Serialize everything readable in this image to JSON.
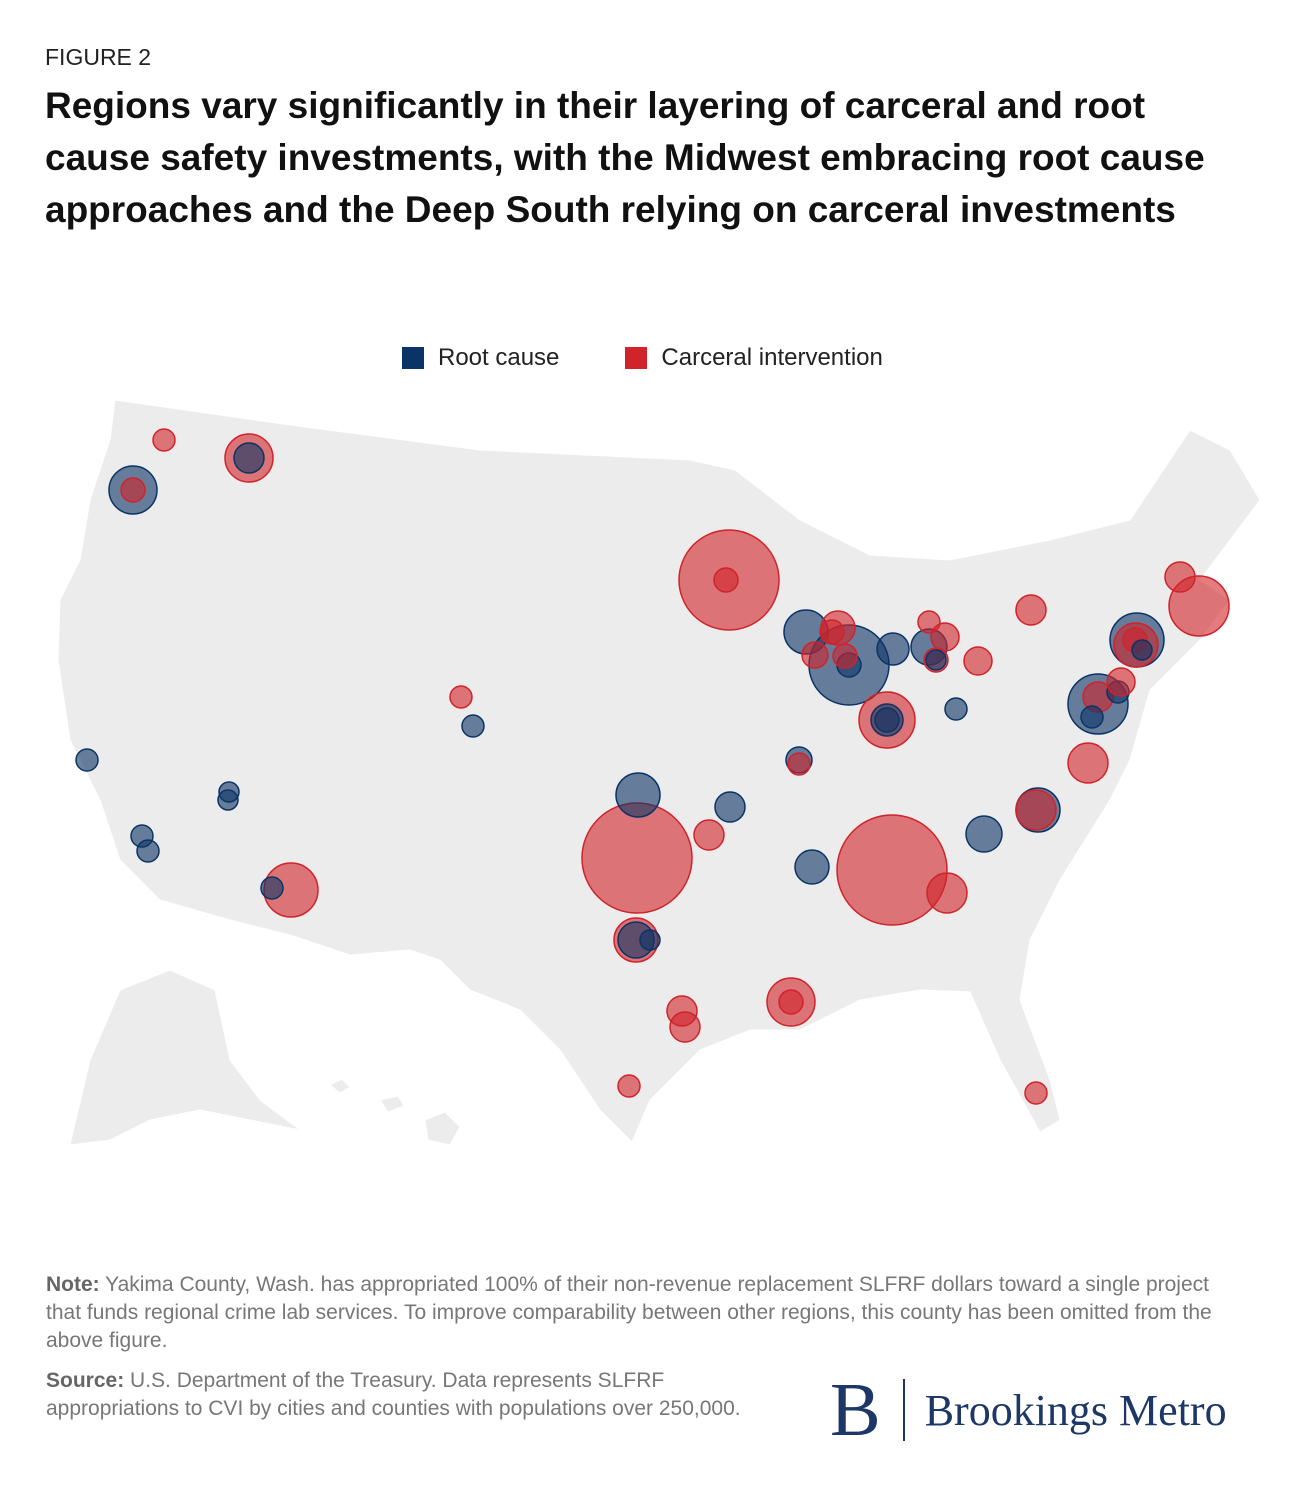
{
  "figure_label": "FIGURE 2",
  "title": "Regions vary significantly in their layering of carceral and root cause safety investments, with the Midwest embracing root cause approaches and the Deep South relying on carceral investments",
  "legend": [
    {
      "name": "Root cause",
      "color": "#0b3466"
    },
    {
      "name": "Carceral intervention",
      "color": "#d0232a"
    }
  ],
  "note": {
    "label": "Note:",
    "text": "Yakima County, Wash. has appropriated 100% of their non-revenue replacement SLFRF dollars toward a single project that funds regional crime lab services. To improve comparability between other regions, this county has been omitted from the above figure."
  },
  "source": {
    "label": "Source:",
    "text": "U.S. Department of the Treasury. Data represents SLFRF appropriations to CVI by cities and counties with populations over 250,000."
  },
  "logo": {
    "mark": "B",
    "text": "Brookings Metro"
  }
}
